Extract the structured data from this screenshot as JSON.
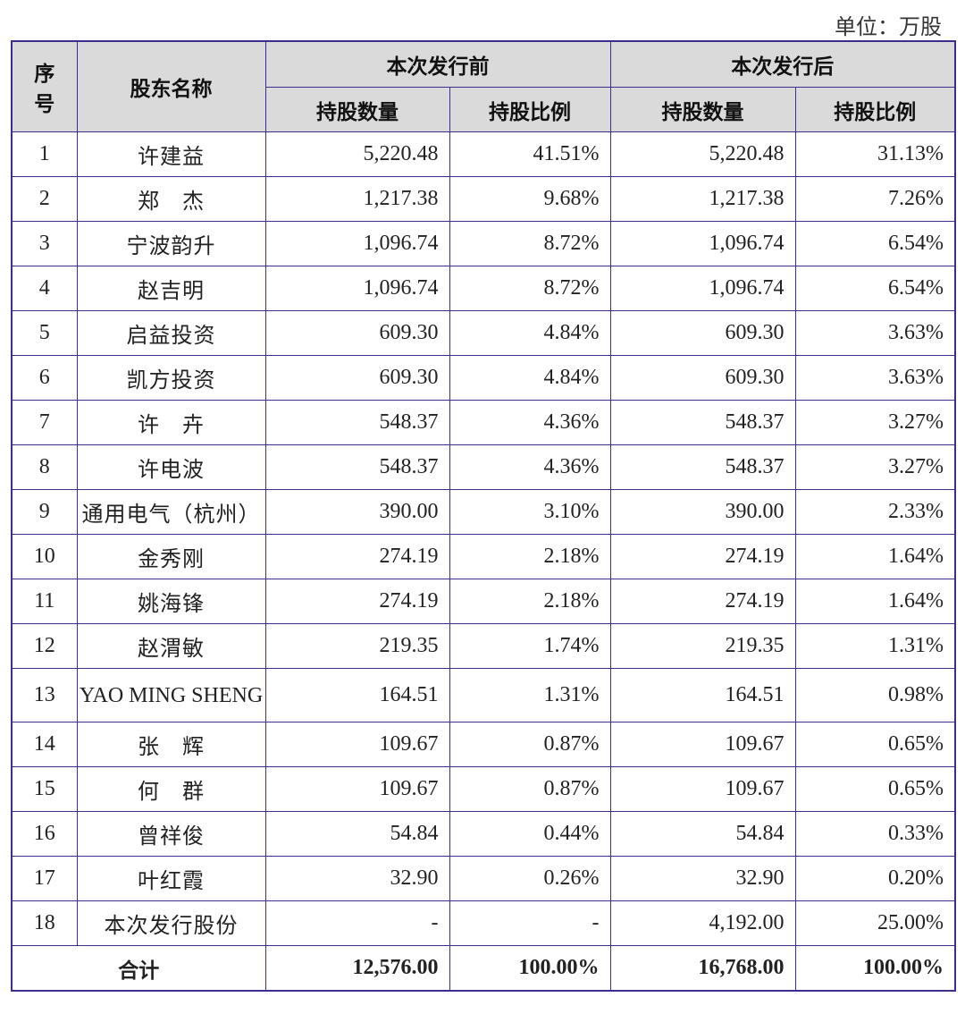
{
  "unit_label": "单位：万股",
  "header": {
    "seq": "序\n号",
    "seq_line1": "序",
    "seq_line2": "号",
    "name": "股东名称",
    "before": "本次发行前",
    "after": "本次发行后",
    "before_qty": "持股数量",
    "before_pct": "持股比例",
    "after_qty": "持股数量",
    "after_pct": "持股比例"
  },
  "rows": [
    {
      "no": "1",
      "name": "许建益",
      "bq": "5,220.48",
      "bp": "41.51%",
      "aq": "5,220.48",
      "ap": "31.13%"
    },
    {
      "no": "2",
      "name": "郑　杰",
      "bq": "1,217.38",
      "bp": "9.68%",
      "aq": "1,217.38",
      "ap": "7.26%"
    },
    {
      "no": "3",
      "name": "宁波韵升",
      "bq": "1,096.74",
      "bp": "8.72%",
      "aq": "1,096.74",
      "ap": "6.54%"
    },
    {
      "no": "4",
      "name": "赵吉明",
      "bq": "1,096.74",
      "bp": "8.72%",
      "aq": "1,096.74",
      "ap": "6.54%"
    },
    {
      "no": "5",
      "name": "启益投资",
      "bq": "609.30",
      "bp": "4.84%",
      "aq": "609.30",
      "ap": "3.63%"
    },
    {
      "no": "6",
      "name": "凯方投资",
      "bq": "609.30",
      "bp": "4.84%",
      "aq": "609.30",
      "ap": "3.63%"
    },
    {
      "no": "7",
      "name": "许　卉",
      "bq": "548.37",
      "bp": "4.36%",
      "aq": "548.37",
      "ap": "3.27%"
    },
    {
      "no": "8",
      "name": "许电波",
      "bq": "548.37",
      "bp": "4.36%",
      "aq": "548.37",
      "ap": "3.27%"
    },
    {
      "no": "9",
      "name": "通用电气（杭州）",
      "bq": "390.00",
      "bp": "3.10%",
      "aq": "390.00",
      "ap": "2.33%"
    },
    {
      "no": "10",
      "name": "金秀刚",
      "bq": "274.19",
      "bp": "2.18%",
      "aq": "274.19",
      "ap": "1.64%"
    },
    {
      "no": "11",
      "name": "姚海锋",
      "bq": "274.19",
      "bp": "2.18%",
      "aq": "274.19",
      "ap": "1.64%"
    },
    {
      "no": "12",
      "name": "赵渭敏",
      "bq": "219.35",
      "bp": "1.74%",
      "aq": "219.35",
      "ap": "1.31%"
    },
    {
      "no": "13",
      "name": "YAO MING SHENG",
      "bq": "164.51",
      "bp": "1.31%",
      "aq": "164.51",
      "ap": "0.98%"
    },
    {
      "no": "14",
      "name": "张　辉",
      "bq": "109.67",
      "bp": "0.87%",
      "aq": "109.67",
      "ap": "0.65%"
    },
    {
      "no": "15",
      "name": "何　群",
      "bq": "109.67",
      "bp": "0.87%",
      "aq": "109.67",
      "ap": "0.65%"
    },
    {
      "no": "16",
      "name": "曾祥俊",
      "bq": "54.84",
      "bp": "0.44%",
      "aq": "54.84",
      "ap": "0.33%"
    },
    {
      "no": "17",
      "name": "叶红霞",
      "bq": "32.90",
      "bp": "0.26%",
      "aq": "32.90",
      "ap": "0.20%"
    },
    {
      "no": "18",
      "name": "本次发行股份",
      "bq": "-",
      "bp": "-",
      "aq": "4,192.00",
      "ap": "25.00%"
    }
  ],
  "total": {
    "label": "合计",
    "bq": "12,576.00",
    "bp": "100.00%",
    "aq": "16,768.00",
    "ap": "100.00%"
  },
  "colors": {
    "border": "#3a2f8f",
    "header_bg": "#dadada"
  }
}
